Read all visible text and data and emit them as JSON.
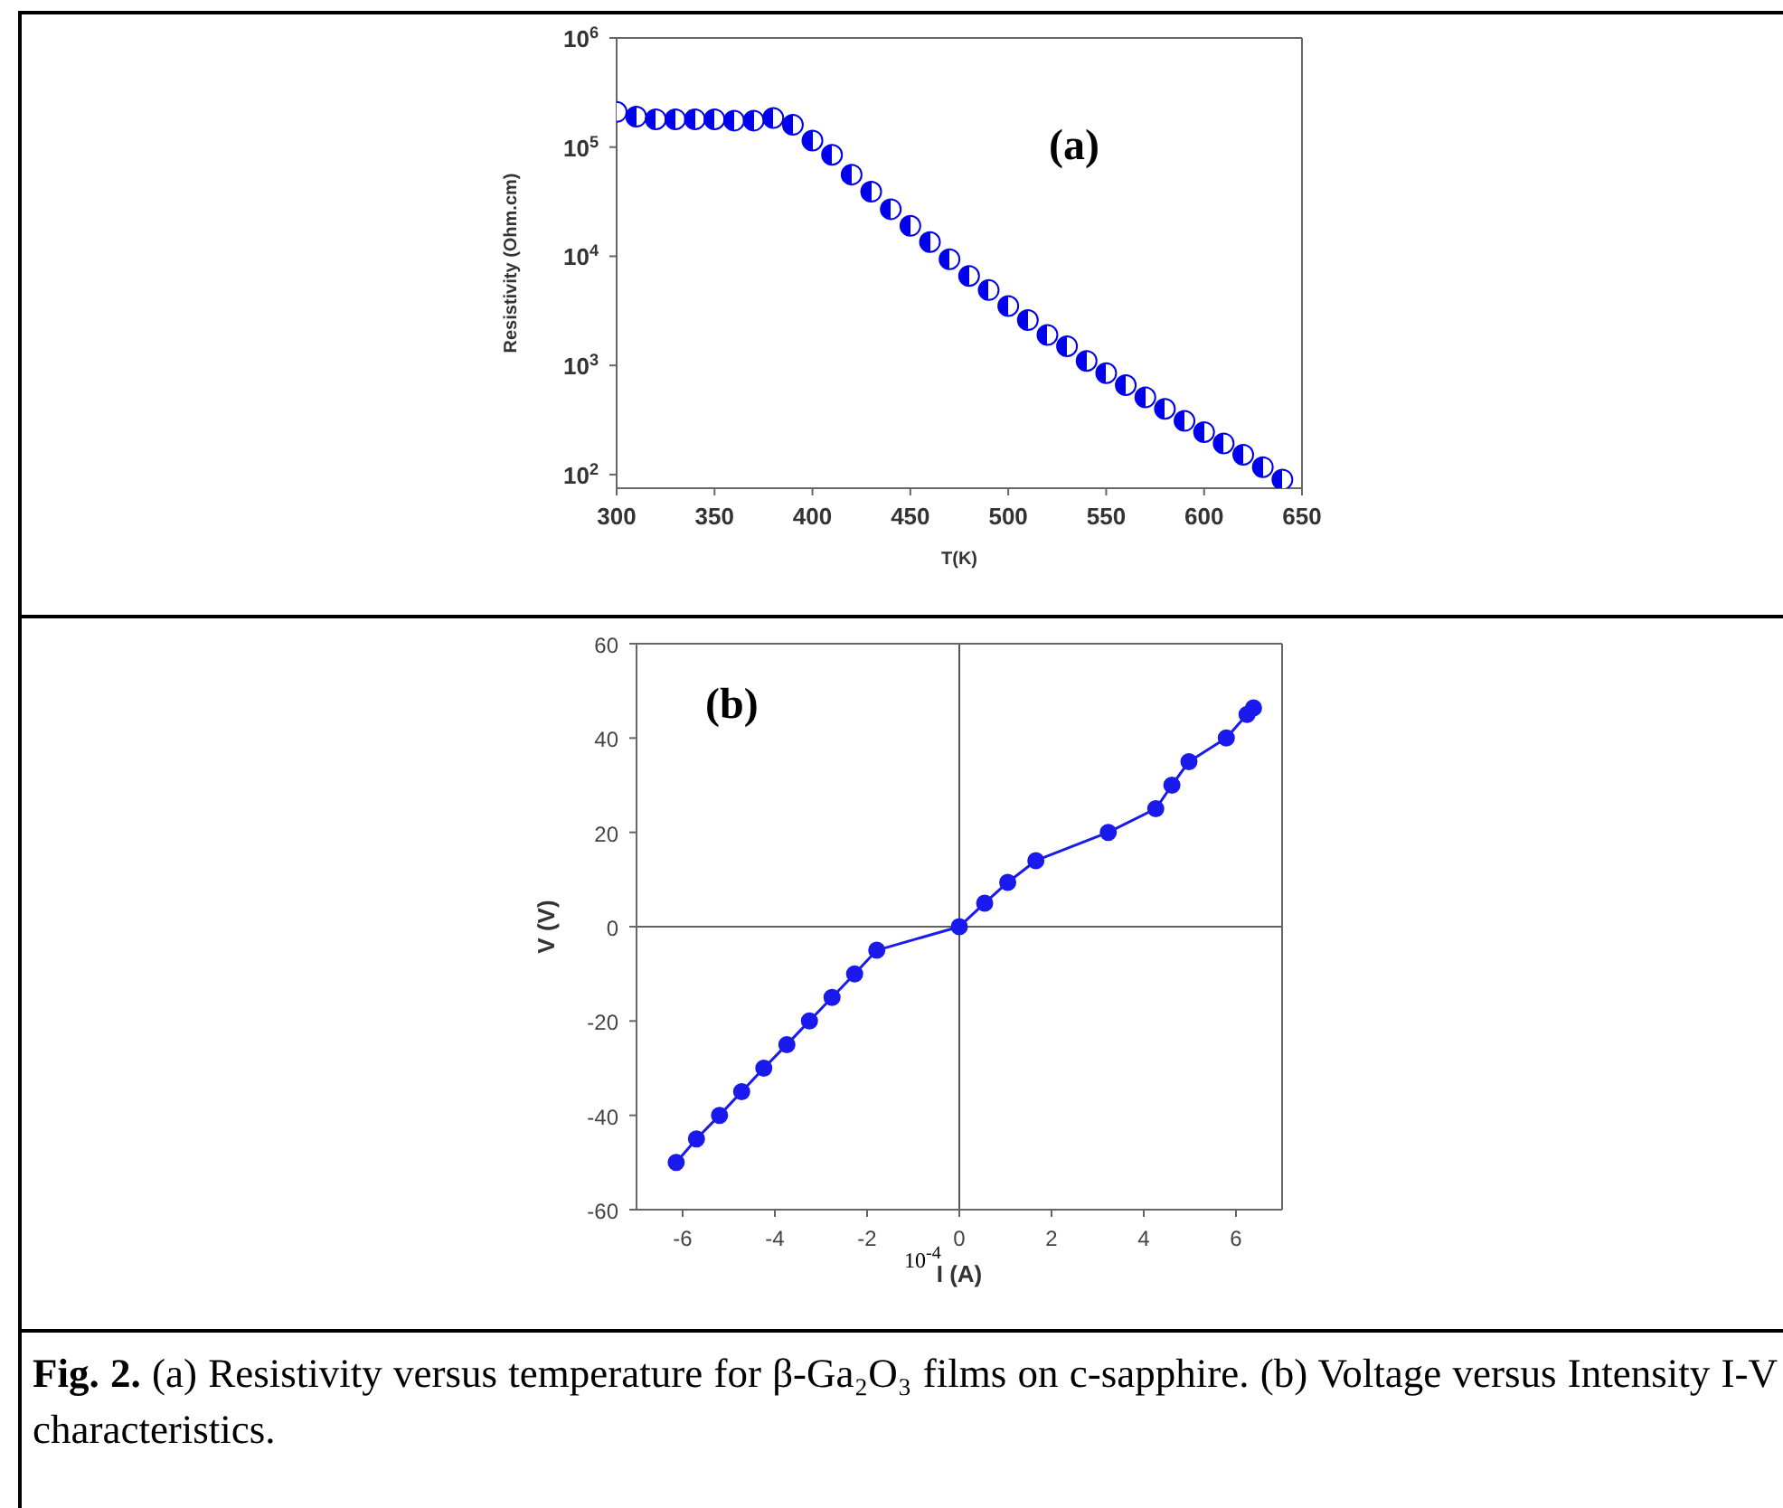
{
  "chart_data": [
    {
      "type": "scatter",
      "xlabel": "T(K)",
      "ylabel": "Resistivity (Ohm.cm)",
      "annotations": [
        "(a)"
      ],
      "log": "y",
      "marker": "circle",
      "x": [
        300,
        310,
        320,
        330,
        340,
        350,
        360,
        370,
        380,
        390,
        400,
        410,
        420,
        430,
        440,
        450,
        460,
        470,
        480,
        490,
        500,
        510,
        520,
        530,
        540,
        550,
        560,
        570,
        580,
        590,
        600,
        610,
        620,
        630,
        640
      ],
      "series": [
        {
          "color": "#0000ee",
          "values": [
            210000,
            190000,
            180000,
            180000,
            180000,
            180000,
            175000,
            175000,
            185000,
            160000,
            115000,
            85000,
            56000,
            39000,
            27000,
            19000,
            13500,
            9400,
            6600,
            4900,
            3500,
            2600,
            1900,
            1500,
            1100,
            850,
            660,
            510,
            400,
            310,
            245,
            193,
            152,
            117,
            90
          ]
        }
      ],
      "xlim": [
        300,
        650
      ],
      "xticks": [
        300,
        350,
        400,
        450,
        500,
        550,
        600,
        650
      ],
      "ylim": [
        75,
        1000000
      ],
      "yticks": [
        {
          "value": 100,
          "label": "10$^{2}$"
        },
        {
          "value": 1000,
          "label": "10$^{3}$"
        },
        {
          "value": 10000,
          "label": "10$^{4}$"
        },
        {
          "value": 100000,
          "label": "10$^{5}$"
        },
        {
          "value": 1000000,
          "label": "10$^{6}$"
        }
      ]
    },
    {
      "type": "line",
      "xlabel": "I (A)",
      "ylabel": "V (V)",
      "annotations": [
        "(b)",
        "10$^{-4}$",
        "Fig. 2.",
        "(a) Resistivity versus temperature for β-Ga₂O₃ films on c-sapphire. (b) Voltage versus Intensity I-V characteristics."
      ],
      "marker": "circle",
      "line_style": "solid",
      "x": [
        -6.14,
        -5.7,
        -5.2,
        -4.72,
        -4.24,
        -3.74,
        -3.25,
        -2.76,
        -2.27,
        -1.79,
        0,
        0.55,
        1.05,
        1.66,
        3.23,
        4.26,
        4.61,
        4.98,
        5.79,
        6.24,
        6.38
      ],
      "series": [
        {
          "color": "#1a1aee",
          "values": [
            -50,
            -45,
            -40,
            -35,
            -30,
            -25,
            -20,
            -15,
            -10,
            -5,
            0,
            5,
            9.4,
            14,
            20,
            25,
            30,
            35,
            40,
            45,
            46.4
          ]
        }
      ],
      "xlim": [
        -7,
        7
      ],
      "xticks": [
        -6,
        -4,
        -2,
        0,
        2,
        4,
        6
      ],
      "ylim": [
        -60,
        60
      ],
      "yticks": [
        -60,
        -40,
        -20,
        0,
        20,
        40,
        60
      ],
      "ref_lines": [
        {
          "axis": "x",
          "value": 0,
          "color": "#555555"
        },
        {
          "axis": "y",
          "value": 0,
          "color": "#606060"
        }
      ]
    }
  ]
}
